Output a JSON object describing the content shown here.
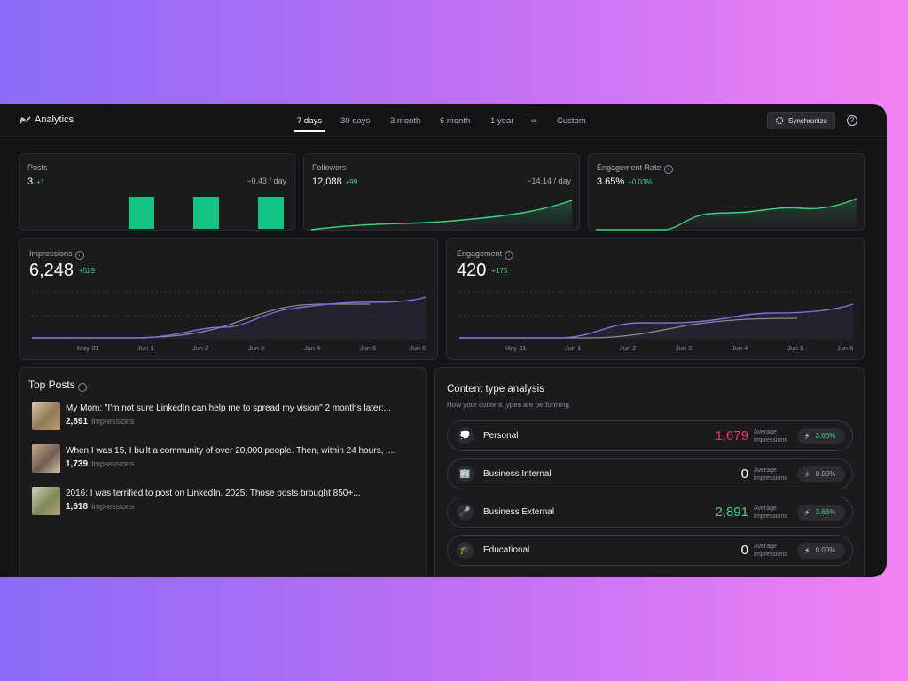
{
  "app": {
    "title": "Analytics"
  },
  "tabs": [
    {
      "label": "7 days"
    },
    {
      "label": "30 days"
    },
    {
      "label": "3 month"
    },
    {
      "label": "6 month"
    },
    {
      "label": "1 year"
    },
    {
      "label": "∞"
    },
    {
      "label": "Custom"
    }
  ],
  "sync_label": "Synchronize",
  "help_label": "?",
  "posts": {
    "label": "Posts",
    "value": "3",
    "delta": "+1",
    "per_day": "−0.43 / day",
    "bars": [
      1,
      1,
      1
    ]
  },
  "followers": {
    "label": "Followers",
    "value": "12,088",
    "delta": "+99",
    "per_day": "−14.14 / day"
  },
  "engagement_rate": {
    "label": "Engagement Rate",
    "value": "3.65%",
    "delta": "+0.03%"
  },
  "impressions": {
    "label": "Impressions",
    "value": "6,248",
    "delta": "+529"
  },
  "engagement": {
    "label": "Engagement",
    "value": "420",
    "delta": "+175"
  },
  "dates": [
    "May 31",
    "Jun 1",
    "Jun 2",
    "Jun 3",
    "Jun 4",
    "Jun 5",
    "Jun 6"
  ],
  "top_posts": {
    "title": "Top Posts",
    "items": [
      {
        "text": "My Mom: \"I'm not sure LinkedIn can help me to spread my vision\" 2 months later:...",
        "count": "2,891",
        "unit": "Impressions"
      },
      {
        "text": "When I was 15, I built a community of over 20,000 people. Then, within 24 hours, I...",
        "count": "1,739",
        "unit": "Impressions"
      },
      {
        "text": "2016: I was terrified to post on LinkedIn. 2025: Those posts brought 850+...",
        "count": "1,618",
        "unit": "Impressions"
      }
    ]
  },
  "content_types": {
    "title": "Content type analysis",
    "subtitle": "How your content types are performing.",
    "avg_label_1": "Average",
    "avg_label_2": "Impressions",
    "items": [
      {
        "name": "Personal",
        "icon": "💭",
        "icon_name": "thought-bubble-icon",
        "value": "1,679",
        "value_color": "#e8336b",
        "pct": "3.66%",
        "pct_color": "#3ed17f"
      },
      {
        "name": "Business Internal",
        "icon": "🏢",
        "icon_name": "building-icon",
        "value": "0",
        "value_color": "#ffffff",
        "pct": "0.00%",
        "pct_color": "#a8a8ae"
      },
      {
        "name": "Business External",
        "icon": "🎤",
        "icon_name": "microphone-icon",
        "value": "2,891",
        "value_color": "#3ed17f",
        "pct": "3.66%",
        "pct_color": "#3ed17f"
      },
      {
        "name": "Educational",
        "icon": "🎓",
        "icon_name": "graduation-cap-icon",
        "value": "0",
        "value_color": "#ffffff",
        "pct": "0.00%",
        "pct_color": "#a8a8ae"
      }
    ]
  },
  "colors": {
    "accent_green": "#13c383",
    "line_green": "#3ed17f",
    "line_purple": "#7b72e0",
    "line_gray": "#8a8a90",
    "negative_pink": "#e8336b"
  }
}
